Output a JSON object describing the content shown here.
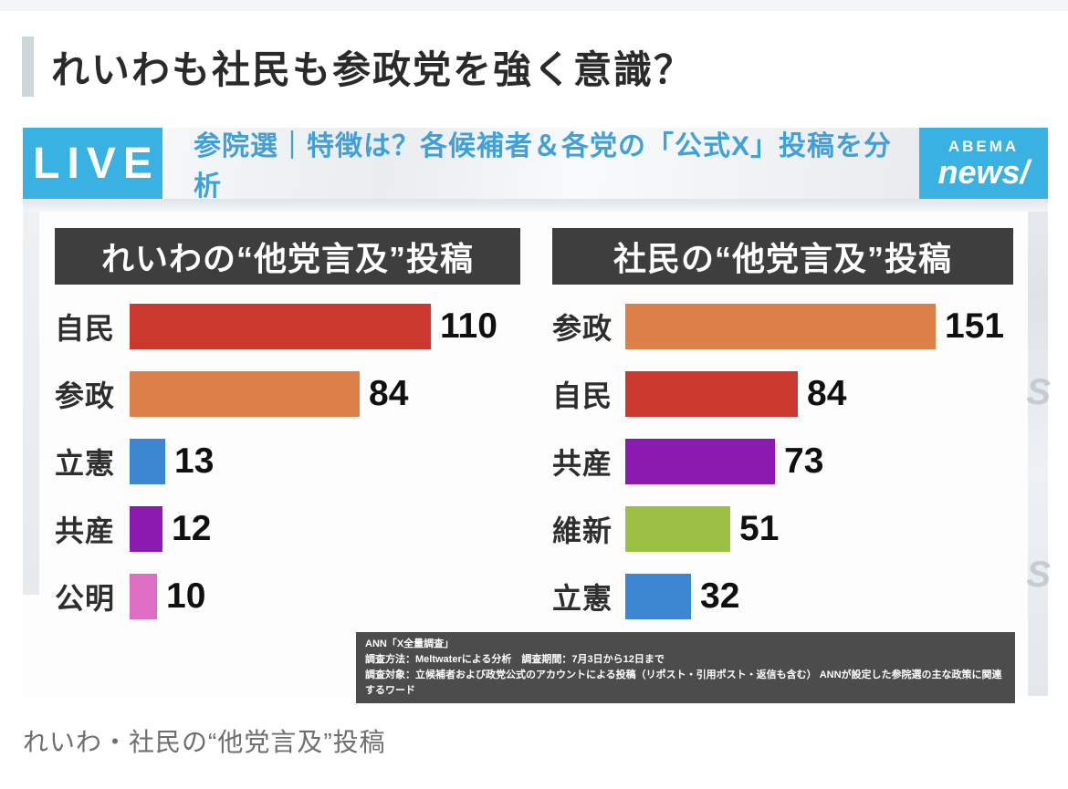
{
  "page": {
    "headline": "れいわも社民も参政党を強く意識？",
    "caption": "れいわ・社民の“他党言及”投稿"
  },
  "broadcast": {
    "live_badge": "LIVE",
    "header_title": "参院選｜特徴は？各候補者＆各党の「公式X」投稿を分析",
    "logo": {
      "top": "ABEMA",
      "bottom": "news/"
    },
    "footnote": {
      "line1": "ANN「X全量調査」",
      "line2": "調査方法：Meltwaterによる分析　調査期間：7月3日から12日まで",
      "line3": "調査対象：立候補者および政党公式のアカウントによる投稿（リポスト・引用ポスト・返信も含む） ANNが設定した参院選の主な政策に関連するワード"
    },
    "colors": {
      "accent_cyan": "#39b1e3",
      "title_blue": "#42a0d8",
      "panel_dark": "#3e3e3e"
    }
  },
  "chart_data": [
    {
      "type": "bar",
      "orientation": "horizontal",
      "title": "れいわの“他党言及”投稿",
      "categories": [
        "自民",
        "参政",
        "立憲",
        "共産",
        "公明"
      ],
      "values": [
        110,
        84,
        13,
        12,
        10
      ],
      "colors": [
        "#cb382e",
        "#dd7f48",
        "#3c86d2",
        "#8c1ab0",
        "#de6ec4"
      ],
      "xlim": [
        0,
        112
      ],
      "value_labels_shown": true,
      "grid": false,
      "legend": false
    },
    {
      "type": "bar",
      "orientation": "horizontal",
      "title": "社民の“他党言及”投稿",
      "categories": [
        "参政",
        "自民",
        "共産",
        "維新",
        "立憲"
      ],
      "values": [
        151,
        84,
        73,
        51,
        32
      ],
      "colors": [
        "#dd7f48",
        "#cb382e",
        "#8c1ab0",
        "#9cc044",
        "#3c86d2"
      ],
      "xlim": [
        0,
        153
      ],
      "value_labels_shown": true,
      "grid": false,
      "legend": false
    }
  ]
}
